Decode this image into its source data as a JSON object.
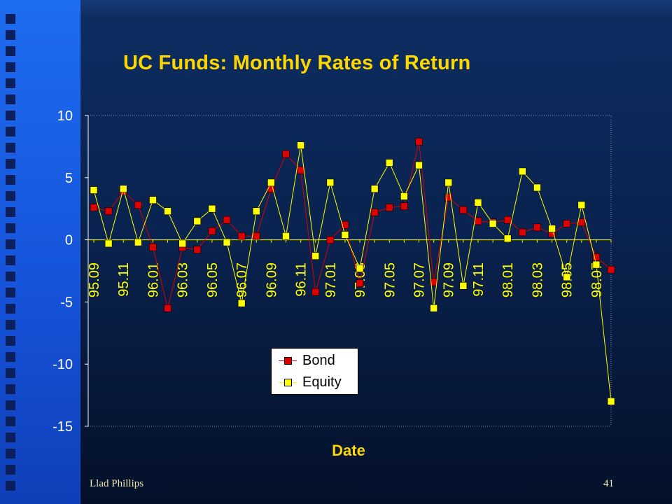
{
  "slide": {
    "title": "UC Funds: Monthly Rates of Return",
    "footer_left": "Llad Phillips",
    "page_number": "41"
  },
  "colors": {
    "bond": "#dd0000",
    "equity": "#ffff00",
    "title": "#ffd700",
    "axis": "#ffffff"
  },
  "chart_data": {
    "type": "line",
    "title": "UC Funds: Monthly Rates of Return",
    "xlabel": "Date",
    "ylabel": "",
    "ylim": [
      -15,
      10
    ],
    "yticks": [
      10,
      5,
      0,
      -5,
      -10,
      -15
    ],
    "tick_labels": [
      "95.09",
      "95.11",
      "96.01",
      "96.03",
      "96.05",
      "96.07",
      "96.09",
      "96.11",
      "97.01",
      "97.03",
      "97.05",
      "97.07",
      "97.09",
      "97.11",
      "98.01",
      "98.03",
      "98.05",
      "98.07"
    ],
    "x": [
      "95.09",
      "95.10",
      "95.11",
      "95.12",
      "96.01",
      "96.02",
      "96.03",
      "96.04",
      "96.05",
      "96.06",
      "96.07",
      "96.08",
      "96.09",
      "96.10",
      "96.11",
      "96.12",
      "97.01",
      "97.02",
      "97.03",
      "97.04",
      "97.05",
      "97.06",
      "97.07",
      "97.08",
      "97.09",
      "97.10",
      "97.11",
      "97.12",
      "98.01",
      "98.02",
      "98.03",
      "98.04",
      "98.05",
      "98.06",
      "98.07",
      "98.08"
    ],
    "series": [
      {
        "name": "Bond",
        "values": [
          2.6,
          2.3,
          3.9,
          2.8,
          -0.6,
          -5.5,
          -0.6,
          -0.8,
          0.7,
          1.6,
          0.3,
          0.3,
          4.1,
          6.9,
          5.6,
          -4.2,
          0.0,
          1.2,
          -3.5,
          2.2,
          2.6,
          2.7,
          7.9,
          -3.4,
          3.4,
          2.4,
          1.5,
          1.4,
          1.6,
          0.6,
          1.0,
          0.5,
          1.3,
          1.4,
          -1.4,
          -2.4
        ]
      },
      {
        "name": "Equity",
        "values": [
          4.0,
          -0.3,
          4.1,
          -0.2,
          3.2,
          2.3,
          -0.3,
          1.5,
          2.5,
          -0.2,
          -5.1,
          2.3,
          4.6,
          0.3,
          7.6,
          -1.3,
          4.6,
          0.4,
          -2.3,
          4.1,
          6.2,
          3.5,
          6.0,
          -5.5,
          4.6,
          -3.7,
          3.0,
          1.3,
          0.1,
          5.5,
          4.2,
          0.9,
          -3.0,
          2.8,
          -2.0,
          -13.0
        ]
      }
    ],
    "legend": "inside-bottom-center",
    "grid": false
  }
}
